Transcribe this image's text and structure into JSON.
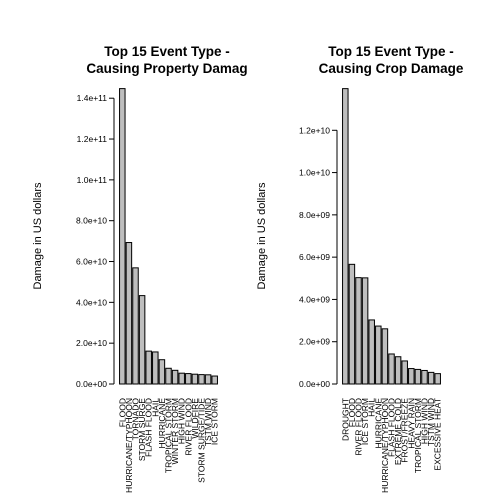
{
  "chart_data": [
    {
      "type": "bar",
      "title": [
        "Top 15 Event Type -",
        "Causing Property Damag"
      ],
      "ylabel": "Damage in US dollars",
      "ylim": [
        0,
        145000000000
      ],
      "yticks": [
        0,
        20000000000,
        40000000000,
        60000000000,
        80000000000,
        100000000000,
        120000000000,
        140000000000
      ],
      "ytick_labels": [
        "0.0e+00",
        "2.0e+10",
        "4.0e+10",
        "6.0e+10",
        "8.0e+10",
        "1.0e+11",
        "1.2e+11",
        "1.4e+11"
      ],
      "categories": [
        "FLOOD",
        "HURRICANE/TYPHOON",
        "TORNADO",
        "STORM SURGE",
        "FLASH FLOOD",
        "HAIL",
        "HURRICANE",
        "TROPICAL STORM",
        "WINTER STORM",
        "HIGH WIND",
        "RIVER FLOOD",
        "WILDFIRE",
        "STORM SURGE/TIDE",
        "TSTM WIND",
        "ICE STORM"
      ],
      "values": [
        144700000000,
        69300000000,
        56900000000,
        43300000000,
        16100000000,
        15700000000,
        11900000000,
        7700000000,
        6700000000,
        5300000000,
        5100000000,
        4800000000,
        4600000000,
        4500000000,
        3900000000
      ],
      "bar_color": "#bebebe"
    },
    {
      "type": "bar",
      "title": [
        "Top 15 Event Type -",
        "Causing Crop Damage"
      ],
      "ylabel": "Damage in US dollars",
      "ylim": [
        0,
        14000000000
      ],
      "yticks": [
        0,
        2000000000,
        4000000000,
        6000000000,
        8000000000,
        10000000000,
        12000000000
      ],
      "ytick_labels": [
        "0.0e+00",
        "2.0e+09",
        "4.0e+09",
        "6.0e+09",
        "8.0e+09",
        "1.0e+10",
        "1.2e+10"
      ],
      "categories": [
        "DROUGHT",
        "FLOOD",
        "RIVER FLOOD",
        "ICE STORM",
        "HAIL",
        "HURRICANE",
        "HURRICANE/TYPHOON",
        "FLASH FLOOD",
        "EXTREME COLD",
        "FROST/FREEZE",
        "HEAVY RAIN",
        "TROPICAL STORM",
        "HIGH WIND",
        "TSTM WIND",
        "EXCESSIVE HEAT"
      ],
      "values": [
        13970000000,
        5660000000,
        5030000000,
        5020000000,
        3030000000,
        2740000000,
        2610000000,
        1420000000,
        1290000000,
        1090000000,
        730000000,
        690000000,
        640000000,
        550000000,
        490000000
      ],
      "bar_color": "#bebebe"
    }
  ]
}
